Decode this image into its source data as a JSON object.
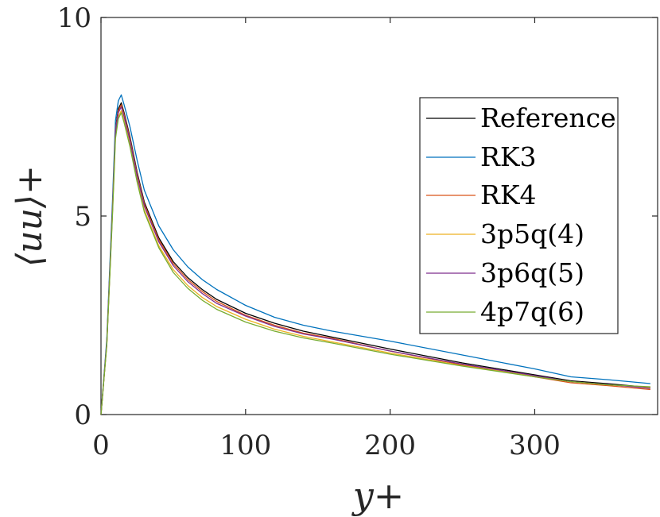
{
  "chart_data": {
    "type": "line",
    "xlabel": "y+",
    "ylabel": "⟨uu⟩+",
    "xlim": [
      0,
      385
    ],
    "ylim": [
      0,
      10
    ],
    "xticks": [
      "0",
      "100",
      "200",
      "300"
    ],
    "yticks": [
      "0",
      "5",
      "10"
    ],
    "legend_position": "top-right",
    "grid": false,
    "series": [
      {
        "name": "Reference",
        "color": "#000000",
        "x": [
          0,
          4,
          8,
          10,
          12,
          14,
          16,
          20,
          25,
          30,
          40,
          50,
          60,
          70,
          80,
          100,
          120,
          140,
          160,
          200,
          250,
          300,
          325,
          350,
          380
        ],
        "y": [
          0,
          1.8,
          5.2,
          7.2,
          7.7,
          7.85,
          7.6,
          7.0,
          6.1,
          5.35,
          4.45,
          3.85,
          3.45,
          3.15,
          2.9,
          2.55,
          2.3,
          2.1,
          1.95,
          1.65,
          1.3,
          1.0,
          0.85,
          0.78,
          0.68
        ]
      },
      {
        "name": "RK3",
        "color": "#0072BD",
        "x": [
          0,
          4,
          8,
          10,
          12,
          14,
          16,
          20,
          25,
          30,
          40,
          50,
          60,
          70,
          80,
          100,
          120,
          140,
          160,
          200,
          250,
          300,
          325,
          350,
          380
        ],
        "y": [
          0,
          1.9,
          5.4,
          7.4,
          7.9,
          8.05,
          7.8,
          7.25,
          6.4,
          5.65,
          4.75,
          4.15,
          3.72,
          3.4,
          3.15,
          2.75,
          2.45,
          2.25,
          2.1,
          1.85,
          1.5,
          1.15,
          0.95,
          0.88,
          0.78
        ]
      },
      {
        "name": "RK4",
        "color": "#D95319",
        "x": [
          0,
          4,
          8,
          10,
          12,
          14,
          16,
          20,
          25,
          30,
          40,
          50,
          60,
          70,
          80,
          100,
          120,
          140,
          160,
          200,
          250,
          300,
          325,
          350,
          380
        ],
        "y": [
          0,
          1.8,
          5.2,
          7.15,
          7.65,
          7.8,
          7.55,
          6.95,
          6.05,
          5.3,
          4.4,
          3.8,
          3.4,
          3.1,
          2.85,
          2.5,
          2.25,
          2.05,
          1.92,
          1.6,
          1.25,
          0.95,
          0.8,
          0.73,
          0.63
        ]
      },
      {
        "name": "3p5q(4)",
        "color": "#EDB120",
        "x": [
          0,
          4,
          8,
          10,
          12,
          14,
          16,
          20,
          25,
          30,
          40,
          50,
          60,
          70,
          80,
          100,
          120,
          140,
          160,
          200,
          250,
          300,
          325,
          350,
          380
        ],
        "y": [
          0,
          1.75,
          5.1,
          7.0,
          7.5,
          7.65,
          7.4,
          6.8,
          5.9,
          5.15,
          4.25,
          3.65,
          3.25,
          2.95,
          2.72,
          2.4,
          2.15,
          1.97,
          1.83,
          1.55,
          1.23,
          0.97,
          0.83,
          0.75,
          0.68
        ]
      },
      {
        "name": "3p6q(5)",
        "color": "#7E2F8E",
        "x": [
          0,
          4,
          8,
          10,
          12,
          14,
          16,
          20,
          25,
          30,
          40,
          50,
          60,
          70,
          80,
          100,
          120,
          140,
          160,
          200,
          250,
          300,
          325,
          350,
          380
        ],
        "y": [
          0,
          1.8,
          5.15,
          7.1,
          7.6,
          7.75,
          7.5,
          6.9,
          6.0,
          5.25,
          4.35,
          3.75,
          3.35,
          3.05,
          2.8,
          2.48,
          2.22,
          2.03,
          1.9,
          1.6,
          1.27,
          0.98,
          0.83,
          0.76,
          0.66
        ]
      },
      {
        "name": "4p7q(6)",
        "color": "#77AC30",
        "x": [
          0,
          4,
          8,
          10,
          12,
          14,
          16,
          20,
          25,
          30,
          40,
          50,
          60,
          70,
          80,
          100,
          120,
          140,
          160,
          200,
          250,
          300,
          325,
          350,
          380
        ],
        "y": [
          0,
          1.75,
          5.05,
          6.95,
          7.45,
          7.6,
          7.35,
          6.75,
          5.85,
          5.1,
          4.2,
          3.58,
          3.18,
          2.88,
          2.65,
          2.33,
          2.1,
          1.93,
          1.8,
          1.52,
          1.22,
          0.95,
          0.83,
          0.75,
          0.7
        ]
      }
    ]
  }
}
